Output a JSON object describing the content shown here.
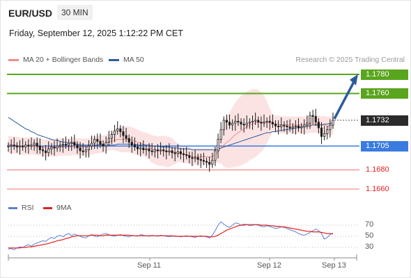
{
  "header": {
    "symbol": "EUR/USD",
    "timeframe": "30 MIN",
    "datetime": "Friday, September 12, 2025 1:12:22 PM CET"
  },
  "legend": {
    "ma20": "MA 20 + Bollinger Bands",
    "ma50": "MA 50",
    "credit": "Research © 2025 Trading Central",
    "rsi": "RSI",
    "rsi_ma": "9MA"
  },
  "colors": {
    "ma20": "#f08a8a",
    "ma50": "#2d5b9a",
    "band_fill": "#fbdada",
    "resistance": "#5aa51e",
    "pivot": "#3a7be0",
    "support": "#f07070",
    "rsi_line": "#5b7fd6",
    "rsi_ma_line": "#e02020",
    "candle": "#1a1a1a"
  },
  "chart_data": [
    {
      "type": "candlestick",
      "title": "EUR/USD 30 MIN",
      "ylim": [
        1.1655,
        1.1785
      ],
      "x_ticks": [
        "Sep 11",
        "Sep 12",
        "Sep 13"
      ],
      "levels": [
        {
          "role": "resistance",
          "value": 1.178,
          "label": "1.1780"
        },
        {
          "role": "resistance",
          "value": 1.176,
          "label": "1.1760"
        },
        {
          "role": "last",
          "value": 1.1732,
          "label": "1.1732"
        },
        {
          "role": "pivot",
          "value": 1.1705,
          "label": "1.1705"
        },
        {
          "role": "support",
          "value": 1.168,
          "label": "1.1680"
        },
        {
          "role": "support",
          "value": 1.166,
          "label": "1.1660"
        }
      ],
      "closes": [
        1.1705,
        1.1706,
        1.1705,
        1.1704,
        1.1705,
        1.1704,
        1.1706,
        1.1705,
        1.1706,
        1.1708,
        1.1705,
        1.1701,
        1.17,
        1.1698,
        1.1702,
        1.1704,
        1.1703,
        1.1705,
        1.1706,
        1.1707,
        1.1706,
        1.1708,
        1.1709,
        1.1706,
        1.1703,
        1.17,
        1.1699,
        1.1701,
        1.1705,
        1.1708,
        1.1712,
        1.171,
        1.1707,
        1.1705,
        1.1709,
        1.1713,
        1.1717,
        1.1721,
        1.1723,
        1.172,
        1.1716,
        1.1713,
        1.1709,
        1.1706,
        1.1704,
        1.1702,
        1.1703,
        1.1701,
        1.1702,
        1.17,
        1.1699,
        1.1701,
        1.17,
        1.1701,
        1.17,
        1.1699,
        1.17,
        1.1698,
        1.1697,
        1.1699,
        1.1697,
        1.1696,
        1.1695,
        1.1693,
        1.1692,
        1.1693,
        1.1691,
        1.169,
        1.1689,
        1.1688,
        1.1686,
        1.169,
        1.17,
        1.1712,
        1.1722,
        1.1732,
        1.173,
        1.1727,
        1.1729,
        1.1731,
        1.173,
        1.1728,
        1.1727,
        1.1729,
        1.173,
        1.1731,
        1.1732,
        1.173,
        1.1729,
        1.173,
        1.1731,
        1.173,
        1.1728,
        1.1726,
        1.1725,
        1.1727,
        1.1726,
        1.1725,
        1.1724,
        1.1725,
        1.1726,
        1.1724,
        1.1725,
        1.1727,
        1.1729,
        1.1737,
        1.1736,
        1.173,
        1.1724,
        1.1715,
        1.1718,
        1.1722,
        1.1727,
        1.1732
      ],
      "ma20": [
        1.1707,
        1.1706,
        1.1706,
        1.1706,
        1.1705,
        1.1705,
        1.1705,
        1.1705,
        1.1705,
        1.1705,
        1.1704,
        1.1704,
        1.1703,
        1.1703,
        1.1703,
        1.1703,
        1.1703,
        1.1703,
        1.1704,
        1.1704,
        1.1704,
        1.1704,
        1.1704,
        1.1705,
        1.1704,
        1.1704,
        1.1704,
        1.1704,
        1.1704,
        1.1705,
        1.1706,
        1.1706,
        1.1707,
        1.1707,
        1.1708,
        1.1709,
        1.171,
        1.1711,
        1.1712,
        1.1712,
        1.1712,
        1.1712,
        1.1712,
        1.1711,
        1.171,
        1.1709,
        1.1708,
        1.1707,
        1.1706,
        1.1704,
        1.1702,
        1.1701,
        1.17,
        1.17,
        1.17,
        1.1699,
        1.1699,
        1.1699,
        1.1698,
        1.1698,
        1.1697,
        1.1696,
        1.1696,
        1.1695,
        1.1694,
        1.1694,
        1.1694,
        1.1694,
        1.1694,
        1.1694,
        1.1693,
        1.1694,
        1.1696,
        1.1699,
        1.1703,
        1.1706,
        1.1709,
        1.1711,
        1.1714,
        1.1717,
        1.1719,
        1.1721,
        1.1723,
        1.1725,
        1.1727,
        1.1728,
        1.1729,
        1.173,
        1.173,
        1.173,
        1.173,
        1.1729,
        1.1729,
        1.1728,
        1.1728,
        1.1727,
        1.1727,
        1.1727,
        1.1727,
        1.1727,
        1.1727,
        1.1727,
        1.1727,
        1.1727,
        1.1727,
        1.1728,
        1.1728,
        1.1728,
        1.1728,
        1.1727,
        1.1727,
        1.1726,
        1.1726,
        1.1727
      ],
      "ma50": [
        1.1735,
        1.1733,
        1.1731,
        1.1729,
        1.1727,
        1.1725,
        1.1723,
        1.1722,
        1.172,
        1.1719,
        1.1717,
        1.1716,
        1.1715,
        1.1714,
        1.1713,
        1.1712,
        1.1711,
        1.1711,
        1.171,
        1.1709,
        1.1709,
        1.1708,
        1.1708,
        1.1707,
        1.1707,
        1.1706,
        1.1706,
        1.1706,
        1.1706,
        1.1706,
        1.1706,
        1.1706,
        1.1706,
        1.1706,
        1.1706,
        1.1706,
        1.1706,
        1.1706,
        1.1707,
        1.1707,
        1.1707,
        1.1707,
        1.1707,
        1.1707,
        1.1707,
        1.1706,
        1.1706,
        1.1706,
        1.1706,
        1.1706,
        1.1705,
        1.1705,
        1.1705,
        1.1704,
        1.1704,
        1.1704,
        1.1704,
        1.1703,
        1.1703,
        1.1703,
        1.1702,
        1.1702,
        1.1702,
        1.1702,
        1.1701,
        1.1701,
        1.1701,
        1.1701,
        1.1701,
        1.1701,
        1.1701,
        1.1701,
        1.1701,
        1.1702,
        1.1703,
        1.1704,
        1.1705,
        1.1706,
        1.1707,
        1.1708,
        1.1709,
        1.171,
        1.1711,
        1.1712,
        1.1713,
        1.1714,
        1.1715,
        1.1716,
        1.1717,
        1.1718,
        1.1719,
        1.1719,
        1.172,
        1.172,
        1.1721,
        1.1721,
        1.1722,
        1.1722,
        1.1723,
        1.1723,
        1.1724,
        1.1724,
        1.1725,
        1.1725,
        1.1726,
        1.1726,
        1.1727,
        1.1727,
        1.1727,
        1.1727,
        1.1728,
        1.1728,
        1.1729,
        1.1729
      ]
    },
    {
      "type": "line",
      "title": "RSI",
      "ylim": [
        20,
        80
      ],
      "y_ticks": [
        70,
        50,
        30
      ],
      "series": [
        {
          "name": "RSI",
          "values": [
            27,
            28,
            26,
            29,
            31,
            30,
            33,
            35,
            32,
            36,
            38,
            40,
            42,
            41,
            45,
            48,
            46,
            50,
            52,
            49,
            53,
            55,
            51,
            54,
            52,
            50,
            48,
            47,
            51,
            53,
            50,
            49,
            52,
            54,
            55,
            53,
            51,
            50,
            52,
            53,
            51,
            50,
            49,
            52,
            51,
            50,
            53,
            52,
            51,
            50,
            52,
            51,
            50,
            52,
            51,
            50,
            49,
            50,
            51,
            50,
            49,
            50,
            51,
            50,
            49,
            48,
            50,
            51,
            50,
            49,
            47,
            52,
            60,
            70,
            76,
            72,
            68,
            66,
            70,
            74,
            73,
            70,
            72,
            71,
            69,
            70,
            71,
            70,
            68,
            67,
            69,
            68,
            66,
            64,
            65,
            67,
            66,
            64,
            62,
            60,
            58,
            55,
            53,
            52,
            54,
            57,
            60,
            63,
            60,
            55,
            45,
            48,
            53,
            56
          ]
        },
        {
          "name": "9MA",
          "values": [
            29,
            29,
            29,
            29,
            29,
            30,
            30,
            31,
            31,
            32,
            33,
            34,
            35,
            36,
            37,
            39,
            40,
            42,
            43,
            44,
            46,
            47,
            49,
            50,
            51,
            51,
            51,
            51,
            51,
            52,
            52,
            52,
            51,
            51,
            52,
            52,
            52,
            52,
            52,
            52,
            52,
            52,
            52,
            51,
            51,
            51,
            51,
            51,
            51,
            51,
            51,
            51,
            51,
            51,
            51,
            51,
            51,
            51,
            50,
            50,
            50,
            50,
            50,
            50,
            50,
            50,
            50,
            50,
            50,
            50,
            49,
            49,
            50,
            52,
            55,
            58,
            61,
            63,
            65,
            67,
            69,
            70,
            70,
            71,
            71,
            71,
            71,
            71,
            70,
            70,
            70,
            69,
            69,
            68,
            68,
            67,
            67,
            66,
            65,
            64,
            63,
            62,
            61,
            60,
            59,
            59,
            58,
            58,
            58,
            57,
            56,
            55,
            55,
            54
          ]
        }
      ]
    }
  ]
}
